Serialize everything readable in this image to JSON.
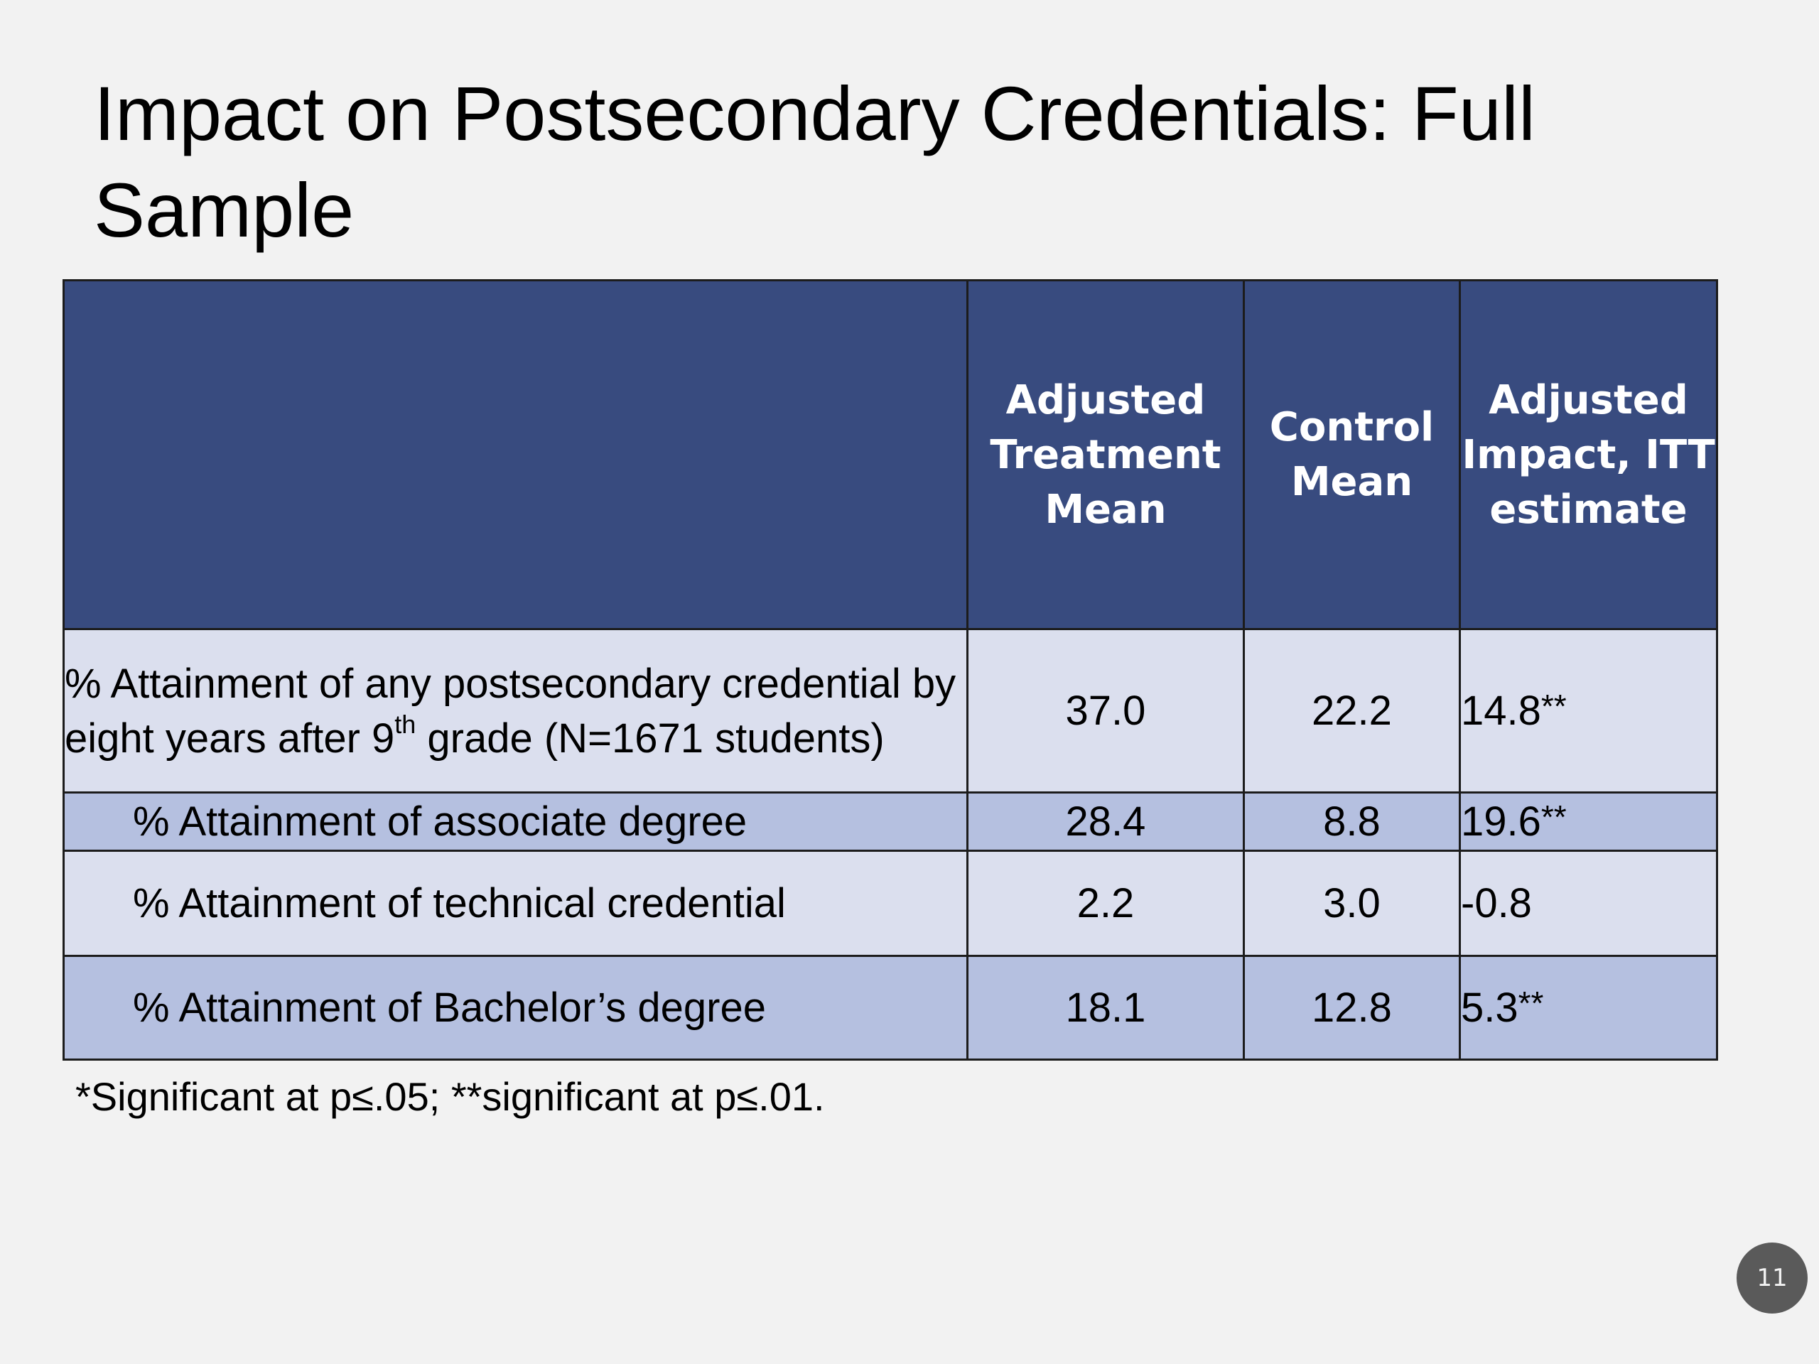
{
  "slide": {
    "title": "Impact on Postsecondary Credentials: Full Sample",
    "page_number": "11",
    "footnote": "*Significant at p≤.05; **significant at p≤.01."
  },
  "table": {
    "header": {
      "label": "",
      "treatment_mean": "Adjusted Treatment Mean",
      "control_mean": "Control Mean",
      "impact": "Adjusted Impact, ITT estimate"
    },
    "rows": [
      {
        "label_prefix": "% Attainment of any postsecondary credential by eight years after 9",
        "label_sup": "th",
        "label_suffix": " grade (N=1671 students)",
        "treatment_mean": "37.0",
        "control_mean": "22.2",
        "impact": "14.8",
        "impact_stars": "**"
      },
      {
        "label": "% Attainment of associate degree",
        "treatment_mean": "28.4",
        "control_mean": "8.8",
        "impact": "19.6",
        "impact_stars": "**"
      },
      {
        "label": "% Attainment of technical credential",
        "treatment_mean": "2.2",
        "control_mean": "3.0",
        "impact": "-0.8",
        "impact_stars": ""
      },
      {
        "label": "% Attainment of Bachelor’s degree",
        "treatment_mean": "18.1",
        "control_mean": "12.8",
        "impact": "5.3",
        "impact_stars": "**"
      }
    ]
  },
  "colors": {
    "header_bg": "#384b7f",
    "row_light": "#dbdfee",
    "row_dark": "#b5c0e0",
    "slide_bg": "#f2f2f2"
  }
}
